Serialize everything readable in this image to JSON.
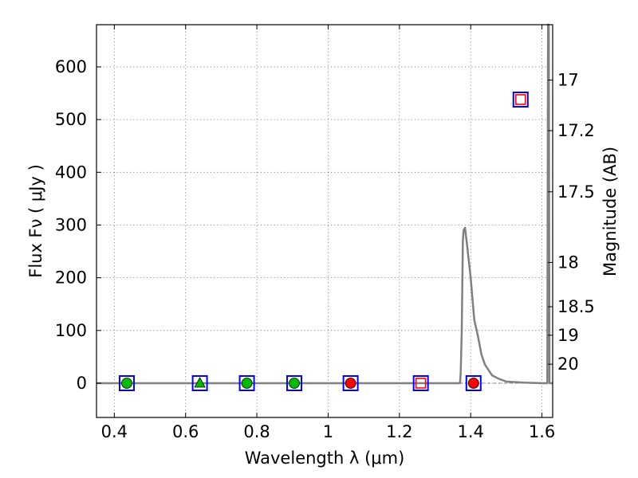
{
  "chart_data": {
    "type": "scatter",
    "title": "",
    "xlabel": "Wavelength  λ (μm)",
    "ylabel": "Flux  Fν  ( μJy )",
    "ylabel_right": "Magnitude (AB)",
    "xlim": [
      0.35,
      1.63
    ],
    "ylim": [
      -65,
      680
    ],
    "grid": true,
    "x_ticks": [
      0.4,
      0.6,
      0.8,
      1.0,
      1.2,
      1.4,
      1.6
    ],
    "x_tick_labels": [
      "0.4",
      "0.6",
      "0.8",
      "1",
      "1.2",
      "1.4",
      "1.6"
    ],
    "y_ticks": [
      0,
      100,
      200,
      300,
      400,
      500,
      600
    ],
    "y_tick_labels": [
      "0",
      "100",
      "200",
      "300",
      "400",
      "500",
      "600"
    ],
    "mag_ticks": [
      {
        "label": "17",
        "flux": 575
      },
      {
        "label": "17.2",
        "flux": 479
      },
      {
        "label": "17.5",
        "flux": 363
      },
      {
        "label": "18",
        "flux": 229
      },
      {
        "label": "18.5",
        "flux": 145
      },
      {
        "label": "19",
        "flux": 91
      },
      {
        "label": "20",
        "flux": 36
      }
    ],
    "series": [
      {
        "name": "open squares",
        "marker": "square",
        "edge_color": "#0000ff",
        "face_color": "none",
        "points": [
          [
            0.435,
            0
          ],
          [
            0.64,
            0
          ],
          [
            0.772,
            0
          ],
          [
            0.905,
            0
          ],
          [
            1.063,
            0
          ],
          [
            1.26,
            0
          ],
          [
            1.408,
            0
          ],
          [
            1.54,
            538
          ]
        ]
      },
      {
        "name": "red squares inner",
        "marker": "square-small",
        "edge_color": "#ff0000",
        "face_color": "none",
        "points": [
          [
            1.26,
            0
          ],
          [
            1.54,
            538
          ]
        ]
      },
      {
        "name": "green circles",
        "marker": "circle",
        "edge_color": "#000000",
        "face_color": "#00bb00",
        "points": [
          [
            0.435,
            0
          ],
          [
            0.772,
            0
          ],
          [
            0.905,
            0
          ]
        ]
      },
      {
        "name": "green triangle",
        "marker": "triangle",
        "edge_color": "#000000",
        "face_color": "#00bb00",
        "points": [
          [
            0.64,
            0
          ]
        ]
      },
      {
        "name": "red circles",
        "marker": "circle",
        "edge_color": "#000000",
        "face_color": "#ff0000",
        "points": [
          [
            1.063,
            0
          ],
          [
            1.408,
            0
          ]
        ]
      }
    ],
    "line": {
      "name": "transmission curve",
      "color": "#808080",
      "x": [
        0.35,
        1.37,
        1.372,
        1.375,
        1.378,
        1.38,
        1.384,
        1.39,
        1.4,
        1.41,
        1.42,
        1.43,
        1.44,
        1.46,
        1.48,
        1.5,
        1.55,
        1.6,
        1.615,
        1.617,
        1.619,
        1.621,
        1.63
      ],
      "y": [
        0,
        0,
        20,
        100,
        270,
        290,
        295,
        260,
        200,
        120,
        90,
        55,
        35,
        15,
        8,
        3,
        1,
        0,
        0,
        680,
        680,
        0,
        0
      ]
    }
  }
}
